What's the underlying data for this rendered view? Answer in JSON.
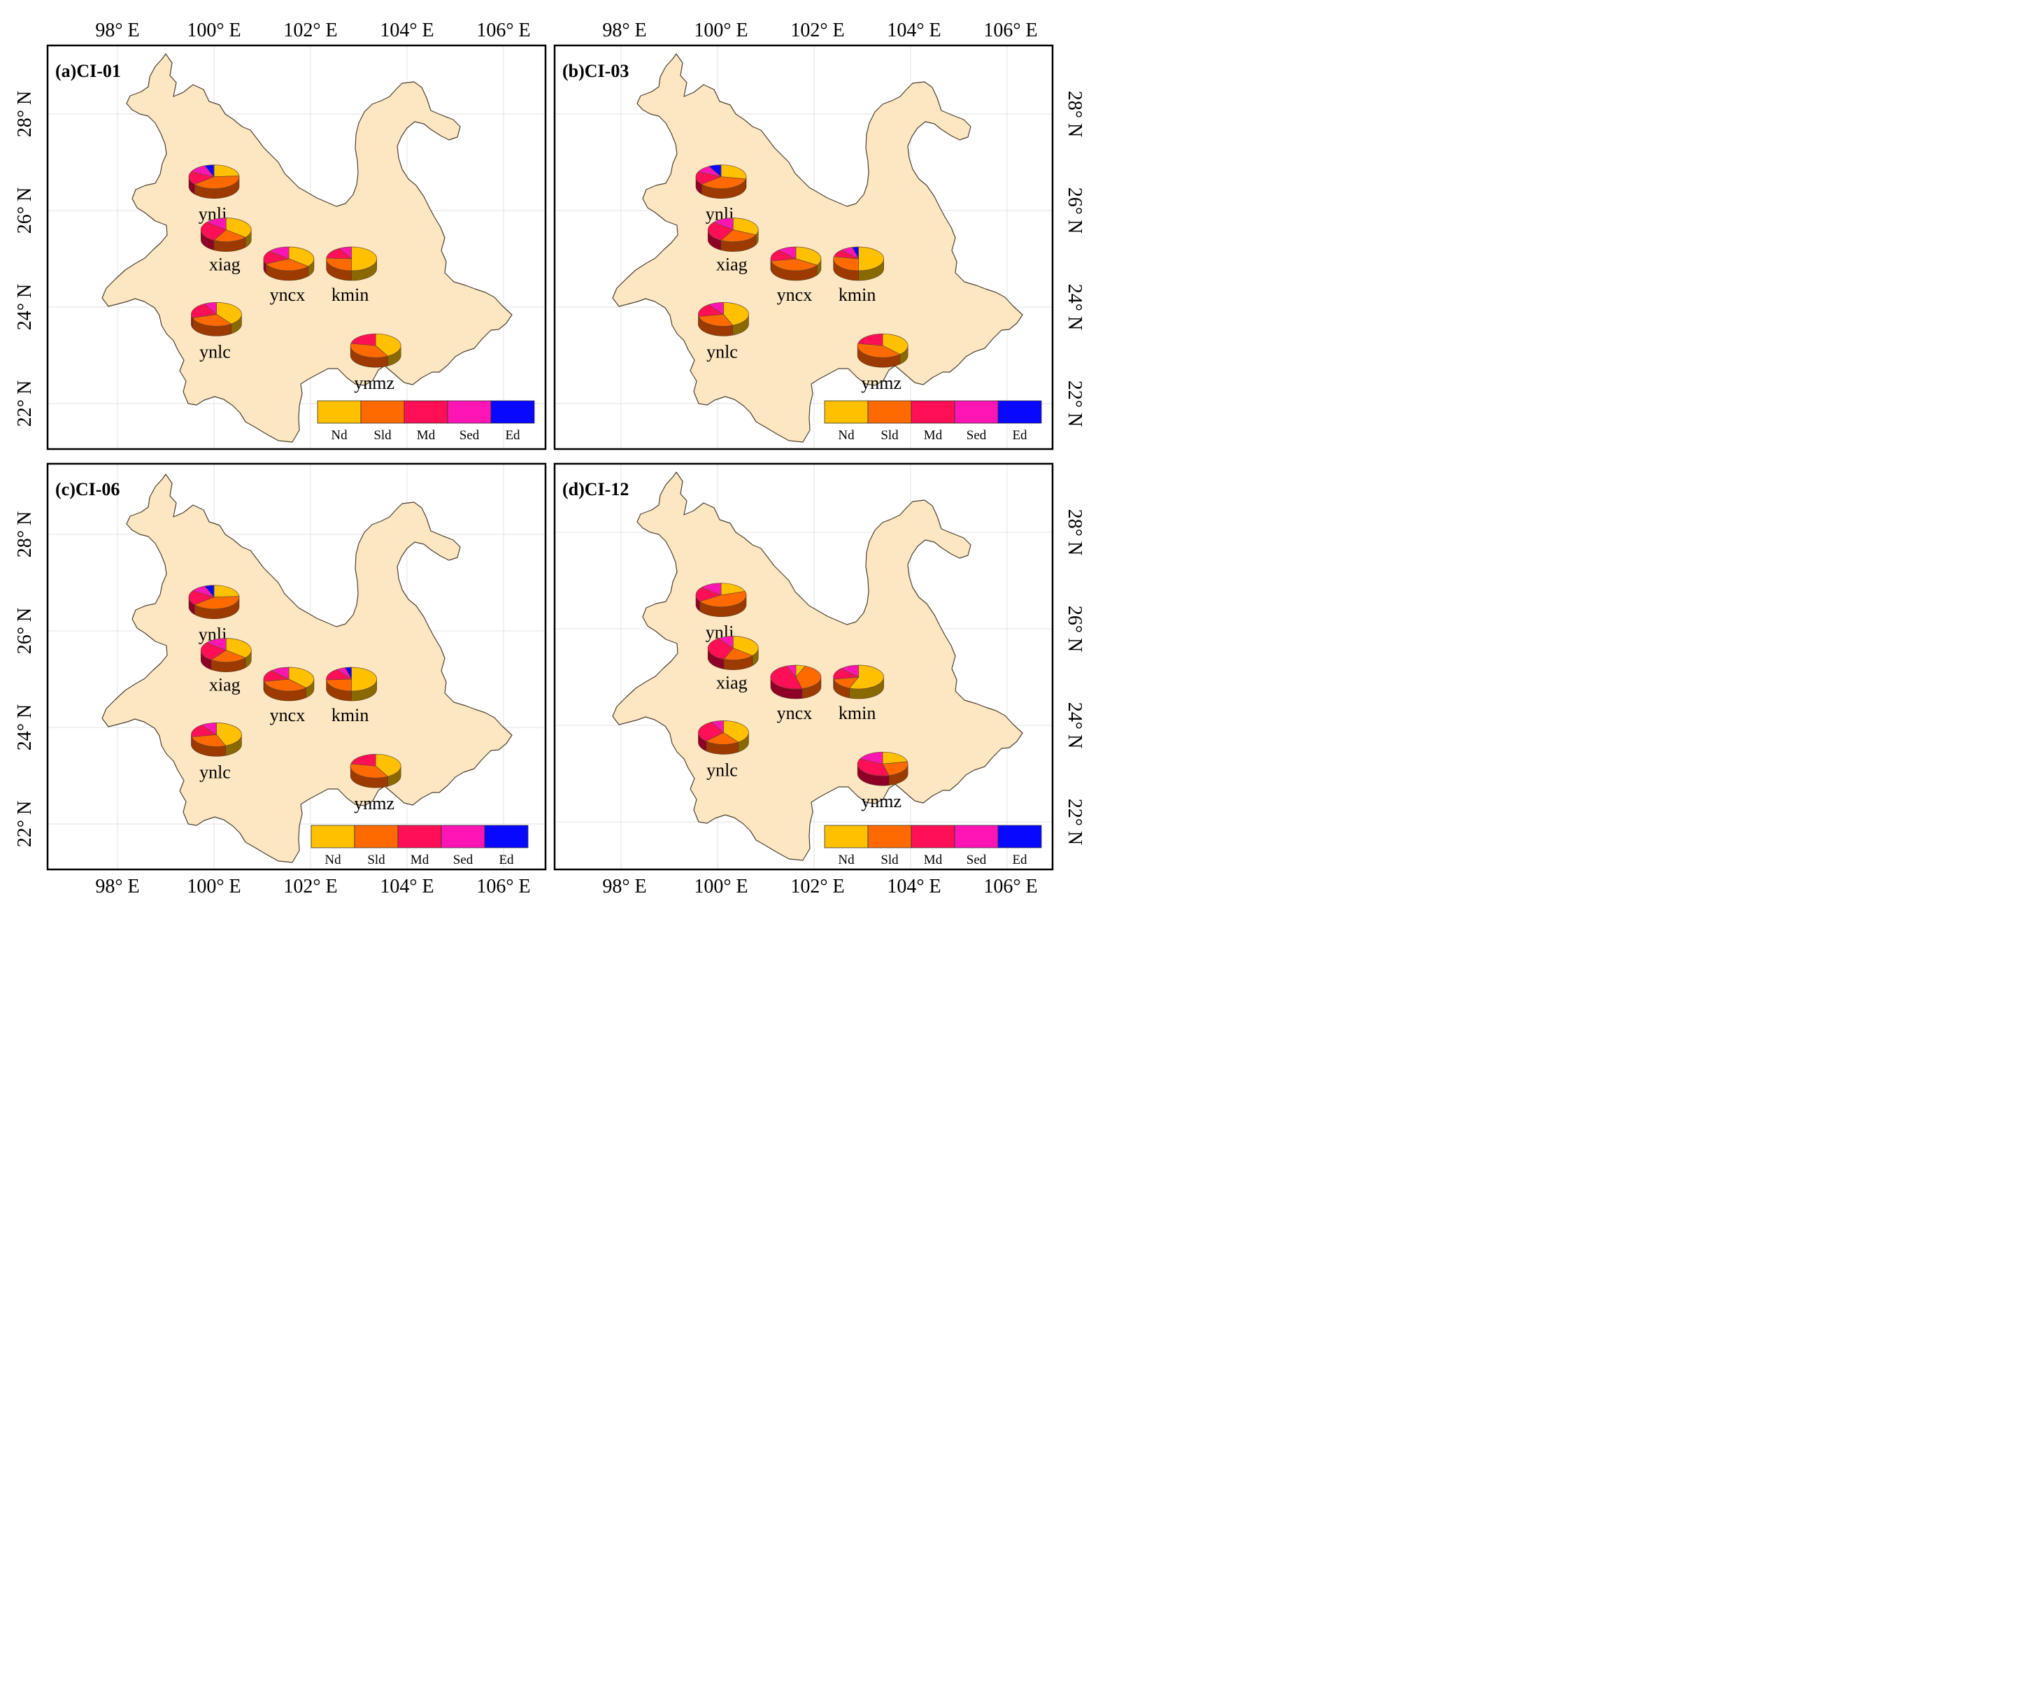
{
  "figure": {
    "colors": {
      "land": "#fde7c3",
      "border": "#4a4030",
      "grid": "#e3e3e3",
      "frame": "#000000",
      "text": "#000000"
    },
    "classes": [
      {
        "code": "Nd",
        "label": "Nd",
        "color": "#ffc000",
        "side": "#8a6a00"
      },
      {
        "code": "Sld",
        "label": "Sld",
        "color": "#ff6a00",
        "side": "#9c3a00"
      },
      {
        "code": "Md",
        "label": "Md",
        "color": "#ff0f55",
        "side": "#8e0028"
      },
      {
        "code": "Sed",
        "label": "Sed",
        "color": "#ff14b4",
        "side": "#8a0060"
      },
      {
        "code": "Ed",
        "label": "Ed",
        "color": "#0808ff",
        "side": "#00007a"
      }
    ],
    "lon_ticks": [
      "98° E",
      "100° E",
      "102° E",
      "104° E",
      "106° E"
    ],
    "lat_ticks": [
      "22° N",
      "24° N",
      "26° N",
      "28° N"
    ],
    "panels": [
      {
        "id": "a",
        "title": "(a)CI-01",
        "stations": [
          {
            "name": "ynlj",
            "fractions": [
              0.24,
              0.4,
              0.18,
              0.12,
              0.06
            ]
          },
          {
            "name": "xiag",
            "fractions": [
              0.36,
              0.22,
              0.28,
              0.14,
              0.0
            ]
          },
          {
            "name": "yncx",
            "fractions": [
              0.36,
              0.32,
              0.18,
              0.14,
              0.0
            ]
          },
          {
            "name": "kmin",
            "fractions": [
              0.5,
              0.26,
              0.16,
              0.08,
              0.0
            ]
          },
          {
            "name": "ynlc",
            "fractions": [
              0.4,
              0.3,
              0.22,
              0.08,
              0.0
            ]
          },
          {
            "name": "ynmz",
            "fractions": [
              0.42,
              0.36,
              0.22,
              0.0,
              0.0
            ]
          }
        ]
      },
      {
        "id": "b",
        "title": "(b)CI-03",
        "stations": [
          {
            "name": "ynlj",
            "fractions": [
              0.28,
              0.36,
              0.18,
              0.1,
              0.08
            ]
          },
          {
            "name": "xiag",
            "fractions": [
              0.32,
              0.26,
              0.28,
              0.14,
              0.0
            ]
          },
          {
            "name": "yncx",
            "fractions": [
              0.34,
              0.38,
              0.16,
              0.12,
              0.0
            ]
          },
          {
            "name": "kmin",
            "fractions": [
              0.5,
              0.28,
              0.1,
              0.08,
              0.04
            ]
          },
          {
            "name": "ynlc",
            "fractions": [
              0.44,
              0.28,
              0.18,
              0.1,
              0.0
            ]
          },
          {
            "name": "ynmz",
            "fractions": [
              0.38,
              0.4,
              0.22,
              0.0,
              0.0
            ]
          }
        ]
      },
      {
        "id": "c",
        "title": "(c)CI-06",
        "stations": [
          {
            "name": "ynlj",
            "fractions": [
              0.24,
              0.4,
              0.2,
              0.1,
              0.06
            ]
          },
          {
            "name": "xiag",
            "fractions": [
              0.36,
              0.24,
              0.26,
              0.14,
              0.0
            ]
          },
          {
            "name": "yncx",
            "fractions": [
              0.38,
              0.34,
              0.16,
              0.12,
              0.0
            ]
          },
          {
            "name": "kmin",
            "fractions": [
              0.5,
              0.24,
              0.16,
              0.06,
              0.04
            ]
          },
          {
            "name": "ynlc",
            "fractions": [
              0.44,
              0.28,
              0.18,
              0.1,
              0.0
            ]
          },
          {
            "name": "ynmz",
            "fractions": [
              0.42,
              0.36,
              0.22,
              0.0,
              0.0
            ]
          }
        ]
      },
      {
        "id": "d",
        "title": "(d)CI-12",
        "stations": [
          {
            "name": "ynlj",
            "fractions": [
              0.2,
              0.46,
              0.2,
              0.14,
              0.0
            ]
          },
          {
            "name": "xiag",
            "fractions": [
              0.36,
              0.2,
              0.34,
              0.1,
              0.0
            ]
          },
          {
            "name": "yncx",
            "fractions": [
              0.06,
              0.4,
              0.48,
              0.06,
              0.0
            ]
          },
          {
            "name": "kmin",
            "fractions": [
              0.56,
              0.16,
              0.16,
              0.12,
              0.0
            ]
          },
          {
            "name": "ynlc",
            "fractions": [
              0.4,
              0.22,
              0.3,
              0.08,
              0.0
            ]
          },
          {
            "name": "ynmz",
            "fractions": [
              0.22,
              0.24,
              0.36,
              0.18,
              0.0
            ]
          }
        ]
      }
    ]
  }
}
